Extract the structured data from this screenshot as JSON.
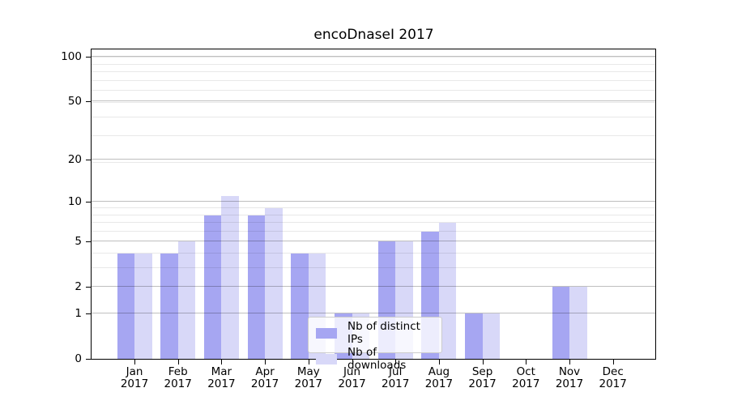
{
  "title": "encoDnaseI 2017",
  "chart_data": {
    "type": "bar",
    "title": "encoDnaseI 2017",
    "xlabel": "",
    "ylabel": "",
    "y_scale": "log10(1+value)",
    "ylim": [
      0,
      113
    ],
    "grid": "on (major and minor horizontal)",
    "legend_position": "lower center",
    "categories": [
      "Jan 2017",
      "Feb 2017",
      "Mar 2017",
      "Apr 2017",
      "May 2017",
      "Jun 2017",
      "Jul 2017",
      "Aug 2017",
      "Sep 2017",
      "Oct 2017",
      "Nov 2017",
      "Dec 2017"
    ],
    "series": [
      {
        "name": "Nb of distinct IPs",
        "color": "#a6a6f2",
        "values": [
          4,
          4,
          8,
          8,
          4,
          1,
          5,
          6,
          1,
          0,
          2,
          0
        ]
      },
      {
        "name": "Nb of downloads",
        "color": "#d8d8f8",
        "values": [
          4,
          5,
          11,
          9,
          4,
          1,
          5,
          7,
          1,
          0,
          2,
          0
        ]
      }
    ],
    "y_ticks": [
      0,
      1,
      2,
      5,
      10,
      20,
      50,
      100
    ],
    "y_minor_gridlines": [
      3,
      4,
      6,
      7,
      8,
      9,
      19,
      29,
      39,
      49,
      59,
      69,
      79,
      89,
      99
    ],
    "colors": {
      "grid_major": "rgba(0,0,0,0.25)",
      "grid_minor": "rgba(0,0,0,0.09)",
      "spine": "#000000",
      "legend_border": "#cccccc",
      "background": "#ffffff"
    }
  }
}
